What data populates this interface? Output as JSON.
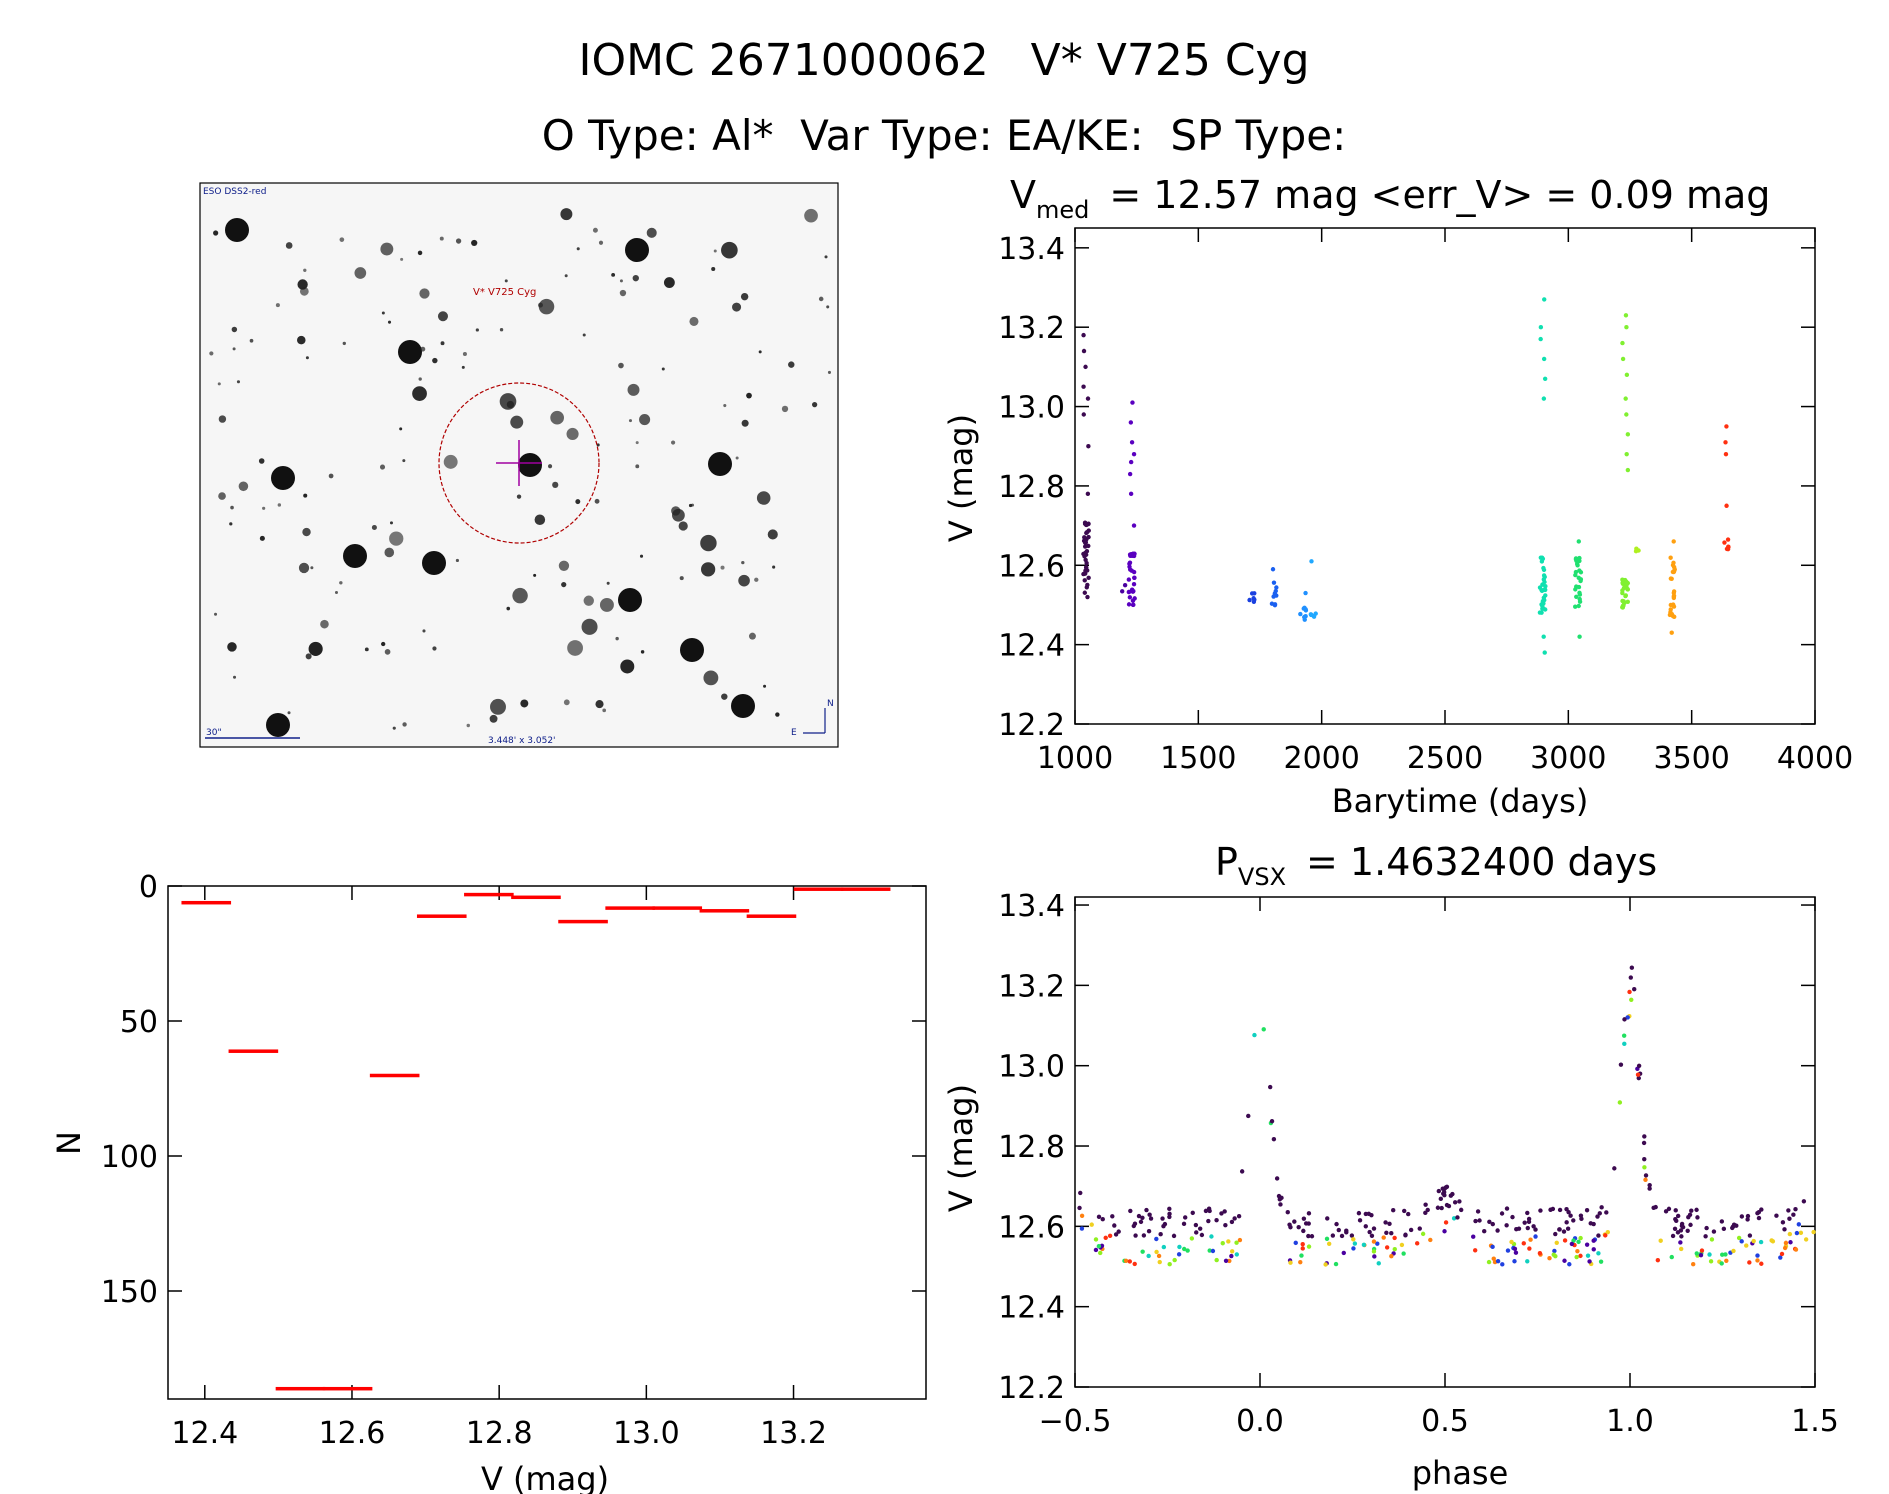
{
  "header": {
    "title": "IOMC 2671000062   V* V725 Cyg",
    "subtitle": "O Type: Al*  Var Type: EA/KE:  SP Type:"
  },
  "image_panel": {
    "top_left_label": "ESO DSS2-red",
    "target_label": "V* V725 Cyg",
    "scale_label": "30\"",
    "fov_label": "3.448' x 3.052'",
    "compass_n": "N",
    "compass_e": "E"
  },
  "colors": {
    "histogram": "#ff0000",
    "axis": "#000000",
    "aperture": "#b00000",
    "crosshair": "#a000a0"
  },
  "chart_data": [
    {
      "id": "lightcurve",
      "type": "scatter",
      "title_main": "V",
      "title_sub": "med",
      "title_rest": "= 12.57 mag <err_V> = 0.09 mag",
      "xlabel": "Barytime (days)",
      "ylabel": "V (mag)",
      "xlim": [
        1000,
        4000
      ],
      "ylim": [
        13.45,
        12.2
      ],
      "xticks": [
        "1000",
        "1500",
        "2000",
        "2500",
        "3000",
        "3500",
        "4000"
      ],
      "yticks": [
        "12.2",
        "12.4",
        "12.6",
        "12.8",
        "13.0",
        "13.2",
        "13.4"
      ],
      "groups": [
        {
          "x": 1045,
          "color": "#3c0a50",
          "core": [
            12.52,
            12.72
          ],
          "tail": [
            12.78,
            12.9,
            12.98,
            13.02,
            13.05,
            13.1,
            13.14,
            13.18
          ],
          "n": 40
        },
        {
          "x": 1200,
          "color": "#4a00a0",
          "core": [
            12.53,
            12.55
          ],
          "tail": [],
          "n": 2
        },
        {
          "x": 1230,
          "color": "#5a00c0",
          "core": [
            12.5,
            12.64
          ],
          "tail": [
            12.7,
            12.78,
            12.83,
            12.86,
            12.88,
            12.91,
            12.96,
            13.01
          ],
          "n": 30
        },
        {
          "x": 1715,
          "color": "#1a40e0",
          "core": [
            12.5,
            12.54
          ],
          "tail": [],
          "n": 6
        },
        {
          "x": 1810,
          "color": "#1a60f0",
          "core": [
            12.49,
            12.56
          ],
          "tail": [
            12.59
          ],
          "n": 10
        },
        {
          "x": 1925,
          "color": "#2090ff",
          "core": [
            12.46,
            12.5
          ],
          "tail": [
            12.53
          ],
          "n": 8
        },
        {
          "x": 1965,
          "color": "#20a8ff",
          "core": [
            12.47,
            12.53
          ],
          "tail": [
            12.61
          ],
          "n": 6
        },
        {
          "x": 2895,
          "color": "#10e0b0",
          "core": [
            12.48,
            12.62
          ],
          "tail": [
            12.38,
            12.42,
            13.02,
            13.07,
            13.12,
            13.17,
            13.2,
            13.27
          ],
          "n": 30
        },
        {
          "x": 3040,
          "color": "#20e070",
          "core": [
            12.48,
            12.63
          ],
          "tail": [
            12.42,
            12.66
          ],
          "n": 25
        },
        {
          "x": 3230,
          "color": "#80f030",
          "core": [
            12.49,
            12.57
          ],
          "tail": [
            12.84,
            12.88,
            12.93,
            12.98,
            13.02,
            13.08,
            13.12,
            13.16,
            13.2,
            13.23
          ],
          "n": 30
        },
        {
          "x": 3285,
          "color": "#b0f020",
          "core": [
            12.62,
            12.66
          ],
          "tail": [],
          "n": 3
        },
        {
          "x": 3420,
          "color": "#ffa010",
          "core": [
            12.47,
            12.62
          ],
          "tail": [
            12.43,
            12.66
          ],
          "n": 25
        },
        {
          "x": 3640,
          "color": "#ff3010",
          "core": [
            12.64,
            12.67
          ],
          "tail": [
            12.75,
            12.88,
            12.91,
            12.95
          ],
          "n": 6
        }
      ]
    },
    {
      "id": "histogram",
      "type": "bar",
      "xlabel": "V (mag)",
      "ylabel": "N",
      "xlim": [
        12.35,
        13.38
      ],
      "ylim": [
        0,
        190
      ],
      "xticks": [
        "12.4",
        "12.6",
        "12.8",
        "13.0",
        "13.2"
      ],
      "yticks": [
        "0",
        "50",
        "100",
        "150"
      ],
      "bin_width": 0.064,
      "bin_starts": [
        12.37,
        12.434,
        12.498,
        12.562,
        12.626,
        12.69,
        12.754,
        12.818,
        12.882,
        12.946,
        13.01,
        13.074,
        13.138,
        13.202,
        13.266
      ],
      "values": [
        6,
        61,
        186,
        186,
        70,
        11,
        3,
        4,
        13,
        8,
        8,
        9,
        11,
        1,
        1
      ]
    },
    {
      "id": "phased",
      "type": "scatter",
      "title_main": "P",
      "title_sub": "VSX",
      "title_rest": "= 1.4632400 days",
      "xlabel": "phase",
      "ylabel": "V (mag)",
      "xlim": [
        -0.5,
        1.5
      ],
      "ylim": [
        13.42,
        12.2
      ],
      "xticks": [
        "−0.5",
        "0.0",
        "0.5",
        "1.0",
        "1.5"
      ],
      "yticks": [
        "12.2",
        "12.4",
        "12.6",
        "12.8",
        "13.0",
        "13.2",
        "13.4"
      ],
      "period_days": 1.46324
    }
  ]
}
